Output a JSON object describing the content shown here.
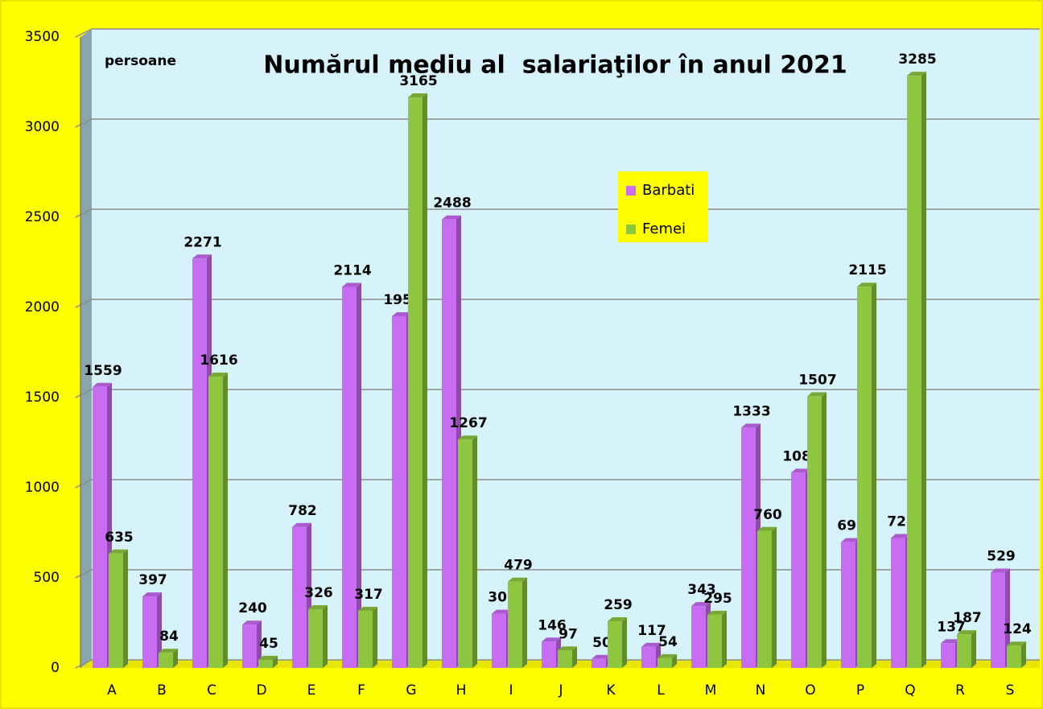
{
  "chart_data": {
    "type": "bar",
    "title": "Numărul mediu al  salariaţilor în anul 2021",
    "annotation": "persoane",
    "categories": [
      "A",
      "B",
      "C",
      "D",
      "E",
      "F",
      "G",
      "H",
      "I",
      "J",
      "K",
      "L",
      "M",
      "N",
      "O",
      "P",
      "Q",
      "R",
      "S"
    ],
    "series": [
      {
        "name": "Barbati",
        "color": "#c86cf2",
        "values": [
          1559,
          397,
          2271,
          240,
          782,
          2114,
          1951,
          2488,
          301,
          146,
          50,
          117,
          343,
          1333,
          1083,
          698,
          721,
          137,
          529
        ]
      },
      {
        "name": "Femei",
        "color": "#8fc640",
        "values": [
          635,
          84,
          1616,
          45,
          326,
          317,
          3165,
          1267,
          479,
          97,
          259,
          54,
          295,
          760,
          1507,
          2115,
          3285,
          187,
          124
        ]
      }
    ],
    "ylim": [
      0,
      3500
    ],
    "yticks": [
      0,
      500,
      1000,
      1500,
      2000,
      2500,
      3000,
      3500
    ],
    "grid": true,
    "legend": "center"
  }
}
